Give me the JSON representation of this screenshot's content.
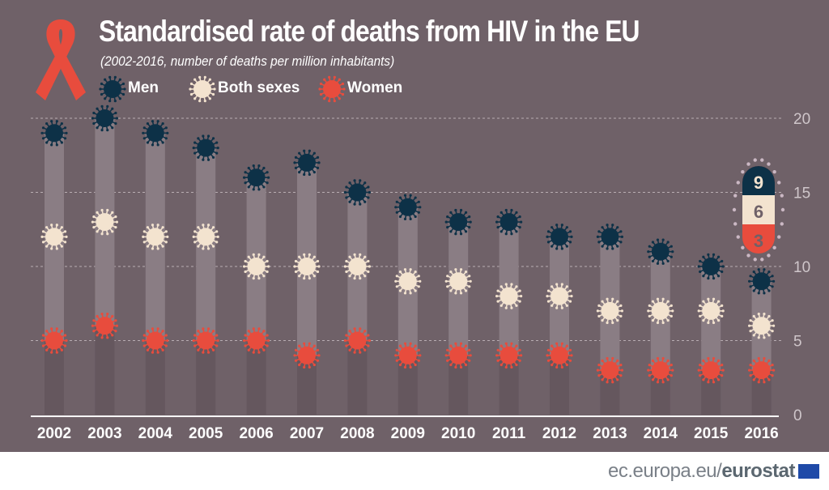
{
  "chart_data": {
    "type": "scatter",
    "title": "Standardised rate of deaths from HIV in the EU",
    "subtitle": "(2002-2016, number of deaths per million inhabitants)",
    "categories": [
      "2002",
      "2003",
      "2004",
      "2005",
      "2006",
      "2007",
      "2008",
      "2009",
      "2010",
      "2011",
      "2012",
      "2013",
      "2014",
      "2015",
      "2016"
    ],
    "series": [
      {
        "name": "Men",
        "color": "#0d3147",
        "values": [
          19,
          20,
          19,
          18,
          16,
          17,
          15,
          14,
          13,
          13,
          12,
          12,
          11,
          10,
          9
        ]
      },
      {
        "name": "Both sexes",
        "color": "#f3e3cf",
        "values": [
          12,
          13,
          12,
          12,
          10,
          10,
          10,
          9,
          9,
          8,
          8,
          7,
          7,
          7,
          6
        ]
      },
      {
        "name": "Women",
        "color": "#e84c3d",
        "values": [
          5,
          6,
          5,
          5,
          5,
          4,
          5,
          4,
          4,
          4,
          4,
          3,
          3,
          3,
          3
        ]
      }
    ],
    "ylim": [
      0,
      20
    ],
    "yticks": [
      "0",
      "5",
      "10",
      "15",
      "20"
    ],
    "grid": true,
    "legend": "top-left",
    "callout_2016": {
      "men": "9",
      "both": "6",
      "women": "3"
    }
  },
  "footer": {
    "site": "ec.europa.eu/",
    "brand": "eurostat"
  },
  "icons": {
    "logo": "red-ribbon-icon",
    "flag": "eu-flag-icon"
  }
}
